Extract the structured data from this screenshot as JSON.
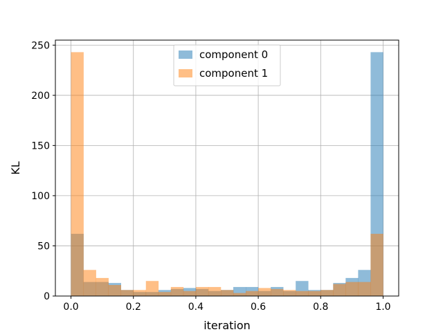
{
  "chart_data": {
    "type": "bar",
    "subtype": "histogram-overlay",
    "title": "",
    "xlabel": "iteration",
    "ylabel": "KL",
    "xlim": [
      -0.05,
      1.05
    ],
    "ylim": [
      0,
      255
    ],
    "xticks": [
      0.0,
      0.2,
      0.4,
      0.6,
      0.8,
      1.0
    ],
    "xtick_labels": [
      "0.0",
      "0.2",
      "0.4",
      "0.6",
      "0.8",
      "1.0"
    ],
    "yticks": [
      0,
      50,
      100,
      150,
      200,
      250
    ],
    "ytick_labels": [
      "0",
      "50",
      "100",
      "150",
      "200",
      "250"
    ],
    "grid": true,
    "legend_position": "upper-center",
    "bin_edges": [
      0.0,
      0.04,
      0.08,
      0.12,
      0.16,
      0.2,
      0.24,
      0.28,
      0.32,
      0.36,
      0.4,
      0.44,
      0.48,
      0.52,
      0.56,
      0.6,
      0.64,
      0.68,
      0.72,
      0.76,
      0.8,
      0.84,
      0.88,
      0.92,
      0.96,
      1.0
    ],
    "series": [
      {
        "name": "component 0",
        "color": "#1f77b4",
        "opacity": 0.5,
        "values": [
          62,
          14,
          14,
          13,
          6,
          4,
          4,
          6,
          7,
          8,
          7,
          5,
          6,
          9,
          9,
          5,
          9,
          5,
          15,
          6,
          6,
          13,
          18,
          26,
          243
        ]
      },
      {
        "name": "component 1",
        "color": "#ff7f0e",
        "opacity": 0.5,
        "values": [
          243,
          26,
          18,
          11,
          6,
          6,
          15,
          4,
          9,
          5,
          9,
          9,
          6,
          3,
          5,
          8,
          7,
          6,
          5,
          5,
          6,
          12,
          14,
          14,
          62
        ]
      }
    ]
  }
}
